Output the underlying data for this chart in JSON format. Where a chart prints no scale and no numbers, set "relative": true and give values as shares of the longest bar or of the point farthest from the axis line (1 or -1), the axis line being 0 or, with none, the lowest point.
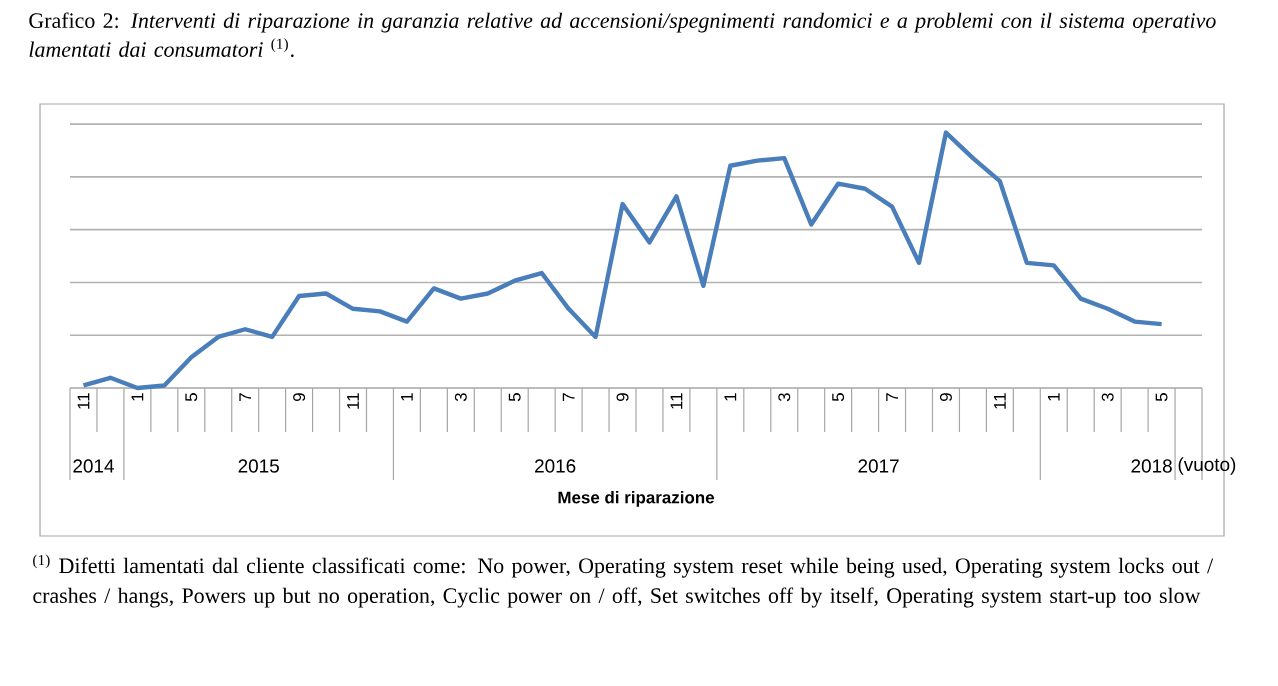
{
  "chart_data": {
    "type": "line",
    "relative": true,
    "grid": "y",
    "title": "Grafico 2: *Interventi di riparazione in garanzia relative ad accensioni/spegnimenti randomici e a problemi con il sistema operativo lamentati dai consumatori* $^{(1)}$.",
    "xlabel": "Mese di riparazione",
    "categories": [
      "11",
      null,
      "1",
      null,
      "5",
      null,
      "7",
      null,
      "9",
      null,
      "11",
      null,
      "1",
      null,
      "3",
      null,
      "5",
      null,
      "7",
      null,
      "9",
      null,
      "11",
      null,
      "1",
      null,
      "3",
      null,
      "5",
      null,
      "7",
      null,
      "9",
      null,
      "11",
      null,
      "1",
      null,
      "3",
      null,
      "5",
      null
    ],
    "series": [
      {
        "color": "#4a7ebb",
        "values": [
          0.01,
          0.04,
          0,
          0.01,
          0.12,
          0.2,
          0.23,
          0.2,
          0.36,
          0.37,
          0.31,
          0.3,
          0.26,
          0.39,
          0.35,
          0.37,
          0.42,
          0.45,
          0.31,
          0.2,
          0.72,
          0.57,
          0.75,
          0.4,
          0.87,
          0.89,
          0.9,
          0.64,
          0.8,
          0.78,
          0.71,
          0.49,
          1,
          0.9,
          0.81,
          0.49,
          0.48,
          0.35,
          0.31,
          0.26,
          0.25,
          null
        ]
      }
    ],
    "annotations": [
      "2014",
      "2015",
      "2016",
      "2017",
      "2018",
      "(vuoto)",
      "$^{(1)}$ Difetti lamentati dal cliente classificati come: No power, Operating system reset while being used, Operating system locks out / crashes / hangs, Powers up but no operation, Cyclic power on / off, Set switches off by itself, Operating system start-up too slow"
    ]
  }
}
